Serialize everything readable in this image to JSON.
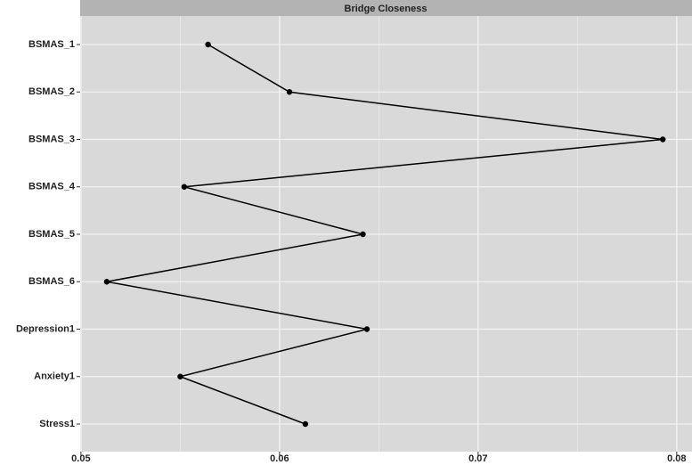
{
  "chart_data": {
    "type": "line",
    "title": "Bridge Closeness",
    "categories": [
      "BSMAS_1",
      "BSMAS_2",
      "BSMAS_3",
      "BSMAS_4",
      "BSMAS_5",
      "BSMAS_6",
      "Depression1",
      "Anxiety1",
      "Stress1"
    ],
    "values": [
      0.0564,
      0.0605,
      0.0793,
      0.0552,
      0.0642,
      0.0513,
      0.0644,
      0.055,
      0.0613
    ],
    "color": "#000000",
    "xlim": [
      0.04996,
      0.08077
    ],
    "xticks": [
      0.05,
      0.06,
      0.07,
      0.08
    ],
    "xminor": [
      0.055,
      0.065,
      0.075
    ],
    "grid": true
  }
}
